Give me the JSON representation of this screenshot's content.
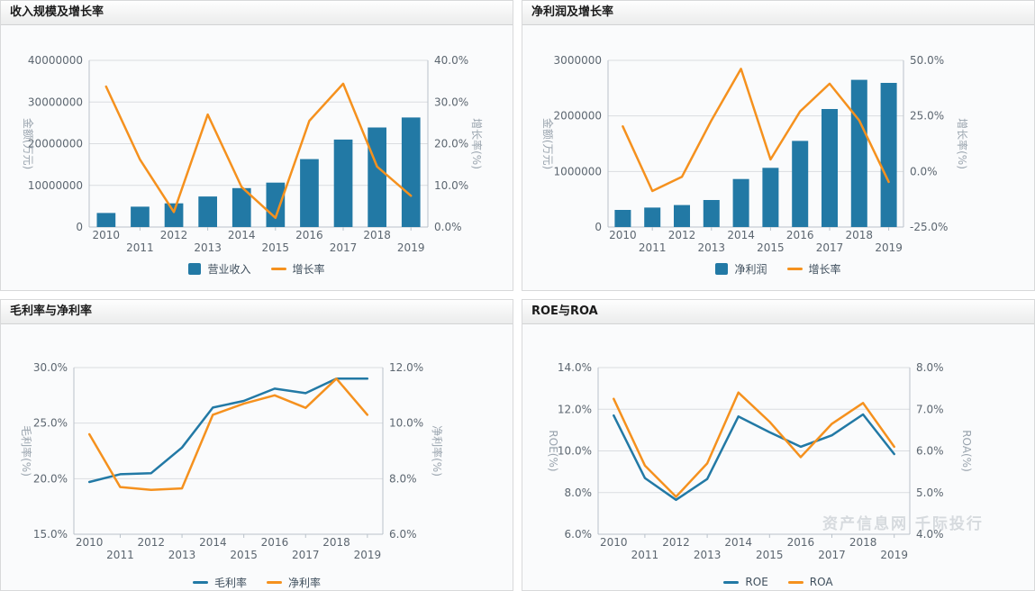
{
  "page": {
    "watermark": "资产信息网 千际投行"
  },
  "chart_data": [
    {
      "type": "combo-bar-line",
      "title": "收入规模及增长率",
      "categories": [
        "2010",
        "2011",
        "2012",
        "2013",
        "2014",
        "2015",
        "2016",
        "2017",
        "2018",
        "2019"
      ],
      "left_axis": {
        "name": "金额(万元)",
        "min": 0,
        "max": 40000000,
        "ticks": [
          "40000000",
          "30000000",
          "20000000",
          "10000000",
          "0"
        ]
      },
      "right_axis": {
        "name": "增长率(%)",
        "min": 0,
        "max": 40,
        "ticks": [
          "40.0%",
          "30.0%",
          "20.0%",
          "10.0%",
          "0.0%"
        ]
      },
      "grid": true,
      "legend_position": "bottom",
      "series": [
        {
          "name": "营业收入",
          "type": "bar",
          "axis": "left",
          "color": "#2279a5",
          "values": [
            3380000,
            4890000,
            5680000,
            7340000,
            9350000,
            10650000,
            16300000,
            21000000,
            23900000,
            26300000
          ]
        },
        {
          "name": "增长率",
          "type": "line",
          "axis": "right",
          "color": "#f5911e",
          "values": [
            33.7,
            16.2,
            3.6,
            27.0,
            9.6,
            2.2,
            25.5,
            34.4,
            14.5,
            7.5
          ]
        }
      ]
    },
    {
      "type": "combo-bar-line",
      "title": "净利润及增长率",
      "categories": [
        "2010",
        "2011",
        "2012",
        "2013",
        "2014",
        "2015",
        "2016",
        "2017",
        "2018",
        "2019"
      ],
      "left_axis": {
        "name": "金额(万元)",
        "min": 0,
        "max": 3000000,
        "ticks": [
          "3000000",
          "2000000",
          "1000000",
          "0"
        ]
      },
      "right_axis": {
        "name": "增长率(%)",
        "min": -25,
        "max": 50,
        "ticks": [
          "50.0%",
          "25.0%",
          "0.0%",
          "-25.0%"
        ]
      },
      "grid": true,
      "legend_position": "bottom",
      "series": [
        {
          "name": "净利润",
          "type": "bar",
          "axis": "left",
          "color": "#2279a5",
          "values": [
            308000,
            351000,
            395000,
            486000,
            865000,
            1065000,
            1551000,
            2124000,
            2649000,
            2595000
          ]
        },
        {
          "name": "增长率",
          "type": "line",
          "axis": "right",
          "color": "#f5911e",
          "values": [
            20.3,
            -8.8,
            -2.4,
            23.0,
            46.2,
            5.4,
            27.0,
            39.5,
            23.0,
            -4.7
          ]
        }
      ]
    },
    {
      "type": "line",
      "title": "毛利率与净利率",
      "categories": [
        "2010",
        "2011",
        "2012",
        "2013",
        "2014",
        "2015",
        "2016",
        "2017",
        "2018",
        "2019"
      ],
      "left_axis": {
        "name": "毛利率(%)",
        "min": 15,
        "max": 30,
        "ticks": [
          "30.0%",
          "25.0%",
          "20.0%",
          "15.0%"
        ]
      },
      "right_axis": {
        "name": "净利率(%)",
        "min": 6,
        "max": 12,
        "ticks": [
          "12.0%",
          "10.0%",
          "8.0%",
          "6.0%"
        ]
      },
      "grid": true,
      "legend_position": "bottom",
      "series": [
        {
          "name": "毛利率",
          "type": "line",
          "axis": "left",
          "color": "#2279a5",
          "values": [
            19.7,
            20.4,
            20.5,
            22.8,
            26.4,
            27.0,
            28.1,
            27.7,
            29.0,
            29.0
          ]
        },
        {
          "name": "净利率",
          "type": "line",
          "axis": "right",
          "color": "#f5911e",
          "values": [
            9.6,
            7.7,
            7.6,
            7.65,
            10.3,
            10.7,
            11.0,
            10.55,
            11.6,
            10.3
          ]
        }
      ]
    },
    {
      "type": "line",
      "title": "ROE与ROA",
      "categories": [
        "2010",
        "2011",
        "2012",
        "2013",
        "2014",
        "2015",
        "2016",
        "2017",
        "2018",
        "2019"
      ],
      "left_axis": {
        "name": "ROE(%)",
        "min": 6,
        "max": 14,
        "ticks": [
          "14.0%",
          "12.0%",
          "10.0%",
          "8.0%",
          "6.0%"
        ]
      },
      "right_axis": {
        "name": "ROA(%)",
        "min": 4,
        "max": 8,
        "ticks": [
          "8.0%",
          "7.0%",
          "6.0%",
          "5.0%",
          "4.0%"
        ]
      },
      "grid": true,
      "legend_position": "bottom",
      "series": [
        {
          "name": "ROE",
          "type": "line",
          "axis": "left",
          "color": "#2279a5",
          "values": [
            11.7,
            8.7,
            7.65,
            8.65,
            11.65,
            10.9,
            10.2,
            10.75,
            11.75,
            9.85
          ]
        },
        {
          "name": "ROA",
          "type": "line",
          "axis": "right",
          "color": "#f5911e",
          "values": [
            7.25,
            5.65,
            4.9,
            5.7,
            7.4,
            6.7,
            5.85,
            6.65,
            7.15,
            6.1
          ]
        }
      ]
    }
  ]
}
